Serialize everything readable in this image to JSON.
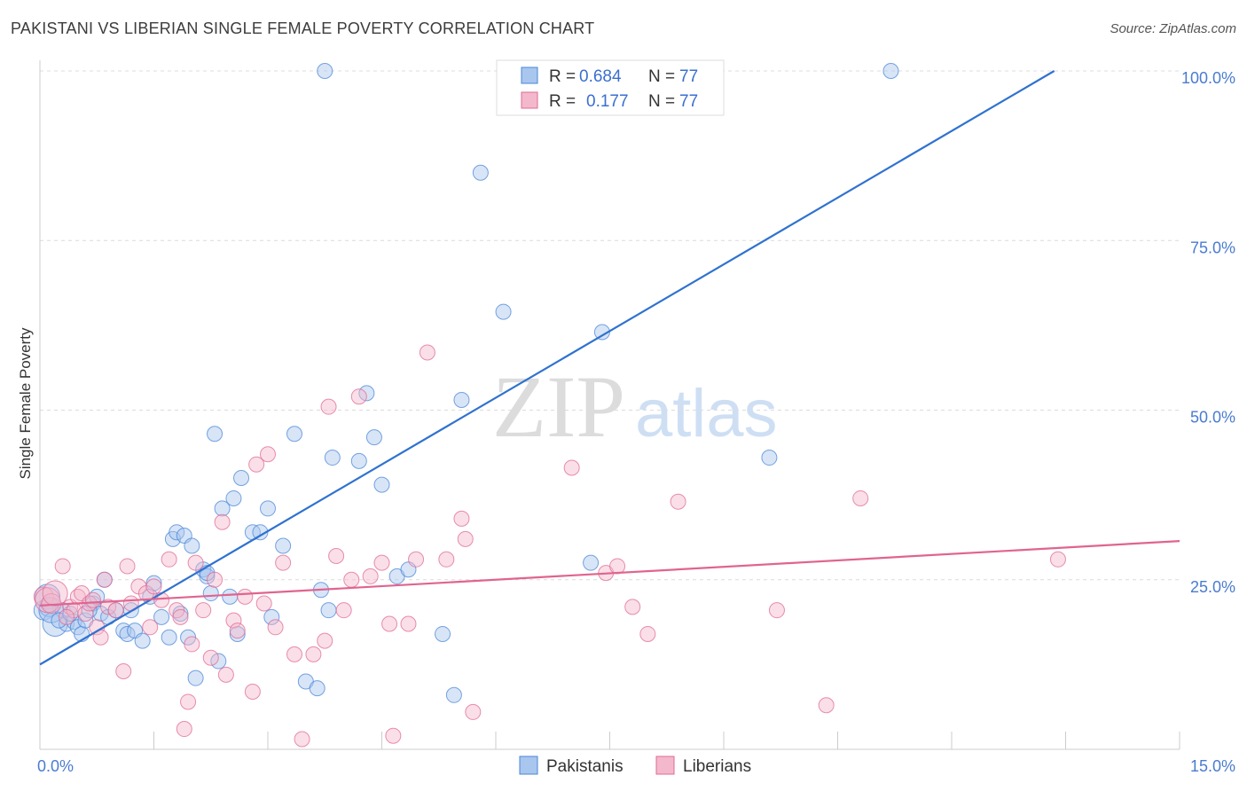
{
  "title": "PAKISTANI VS LIBERIAN SINGLE FEMALE POVERTY CORRELATION CHART",
  "source": "Source: ZipAtlas.com",
  "watermark": {
    "zip": "ZIP",
    "atlas": "atlas"
  },
  "chart_data": {
    "type": "scatter",
    "xlabel": "",
    "ylabel": "Single Female Poverty",
    "xlim": [
      0,
      15
    ],
    "ylim": [
      0,
      100
    ],
    "x_tick_labels": [
      {
        "value": 0,
        "label": "0.0%"
      },
      {
        "value": 15,
        "label": "15.0%"
      }
    ],
    "y_tick_labels": [
      {
        "value": 25,
        "label": "25.0%"
      },
      {
        "value": 50,
        "label": "50.0%"
      },
      {
        "value": 75,
        "label": "75.0%"
      },
      {
        "value": 100,
        "label": "100.0%"
      }
    ],
    "legend": {
      "r_label": "R =",
      "n_label": "N =",
      "entries": [
        {
          "r": "0.684",
          "n": "77"
        },
        {
          "r": "0.177",
          "n": "77"
        }
      ]
    },
    "series": [
      {
        "name": "Pakistanis",
        "color": "#4a86d8",
        "fill": "#a9c6ee",
        "trend": {
          "x": [
            0,
            13.35
          ],
          "y": [
            12.5,
            100
          ]
        },
        "points": [
          [
            0.05,
            20.5
          ],
          [
            0.1,
            22.5
          ],
          [
            0.12,
            21
          ],
          [
            0.2,
            18.5
          ],
          [
            0.3,
            20.5
          ],
          [
            0.35,
            18.5
          ],
          [
            0.45,
            18.8
          ],
          [
            0.5,
            18
          ],
          [
            0.55,
            17
          ],
          [
            0.6,
            19
          ],
          [
            0.7,
            21.5
          ],
          [
            0.75,
            22.5
          ],
          [
            0.8,
            20
          ],
          [
            0.85,
            25
          ],
          [
            0.9,
            19.5
          ],
          [
            1.0,
            20.5
          ],
          [
            1.1,
            17.5
          ],
          [
            1.15,
            17
          ],
          [
            1.25,
            17.5
          ],
          [
            1.35,
            16
          ],
          [
            1.5,
            24.5
          ],
          [
            1.6,
            19.5
          ],
          [
            1.7,
            16.5
          ],
          [
            1.75,
            31
          ],
          [
            1.8,
            32
          ],
          [
            1.85,
            20
          ],
          [
            1.9,
            31.5
          ],
          [
            1.95,
            16.5
          ],
          [
            2.0,
            30
          ],
          [
            2.05,
            10.5
          ],
          [
            2.15,
            26.5
          ],
          [
            2.2,
            25.5
          ],
          [
            2.25,
            23
          ],
          [
            2.3,
            46.5
          ],
          [
            2.35,
            13
          ],
          [
            2.4,
            35.5
          ],
          [
            2.5,
            22.5
          ],
          [
            2.55,
            37
          ],
          [
            2.6,
            17
          ],
          [
            2.65,
            40
          ],
          [
            2.8,
            32
          ],
          [
            2.9,
            32
          ],
          [
            3.0,
            35.5
          ],
          [
            3.05,
            19.5
          ],
          [
            3.2,
            30
          ],
          [
            3.35,
            46.5
          ],
          [
            3.5,
            10
          ],
          [
            3.65,
            9
          ],
          [
            3.7,
            23.5
          ],
          [
            3.8,
            20.5
          ],
          [
            3.85,
            43
          ],
          [
            4.2,
            42.5
          ],
          [
            4.3,
            52.5
          ],
          [
            4.4,
            46
          ],
          [
            4.5,
            39
          ],
          [
            4.7,
            25.5
          ],
          [
            4.85,
            26.5
          ],
          [
            5.3,
            17
          ],
          [
            5.45,
            8
          ],
          [
            5.55,
            51.5
          ],
          [
            5.8,
            85
          ],
          [
            6.1,
            64.5
          ],
          [
            6.25,
            100
          ],
          [
            6.8,
            100
          ],
          [
            7.25,
            27.5
          ],
          [
            7.4,
            61.5
          ],
          [
            8.5,
            100
          ],
          [
            9.6,
            43
          ],
          [
            11.2,
            100
          ],
          [
            0.15,
            20.5
          ],
          [
            0.25,
            19
          ],
          [
            0.4,
            20
          ],
          [
            0.65,
            20.5
          ],
          [
            1.2,
            20.5
          ],
          [
            1.45,
            22.5
          ],
          [
            3.75,
            100
          ],
          [
            2.2,
            26
          ]
        ]
      },
      {
        "name": "Liberians",
        "color": "#e06a94",
        "fill": "#f4b8cc",
        "trend": {
          "x": [
            0,
            15
          ],
          "y": [
            21.2,
            30.7
          ]
        },
        "points": [
          [
            0.05,
            22.5
          ],
          [
            0.1,
            22
          ],
          [
            0.15,
            21.5
          ],
          [
            0.2,
            23
          ],
          [
            0.3,
            27
          ],
          [
            0.4,
            21
          ],
          [
            0.45,
            20.5
          ],
          [
            0.5,
            22.5
          ],
          [
            0.55,
            23
          ],
          [
            0.6,
            20
          ],
          [
            0.65,
            21.5
          ],
          [
            0.7,
            22
          ],
          [
            0.75,
            18
          ],
          [
            0.8,
            16.5
          ],
          [
            0.85,
            25
          ],
          [
            0.9,
            21
          ],
          [
            1.1,
            11.5
          ],
          [
            1.15,
            27
          ],
          [
            1.2,
            21.5
          ],
          [
            1.3,
            24
          ],
          [
            1.4,
            23
          ],
          [
            1.45,
            18
          ],
          [
            1.5,
            24
          ],
          [
            1.6,
            22
          ],
          [
            1.7,
            28
          ],
          [
            1.8,
            20.5
          ],
          [
            1.85,
            19.5
          ],
          [
            1.9,
            3
          ],
          [
            1.95,
            7
          ],
          [
            2.0,
            15.5
          ],
          [
            2.05,
            27.5
          ],
          [
            2.15,
            20.5
          ],
          [
            2.25,
            13.5
          ],
          [
            2.3,
            25
          ],
          [
            2.4,
            33.5
          ],
          [
            2.45,
            11
          ],
          [
            2.55,
            19
          ],
          [
            2.6,
            17.5
          ],
          [
            2.7,
            22.5
          ],
          [
            2.8,
            8.5
          ],
          [
            2.85,
            42
          ],
          [
            2.95,
            21.5
          ],
          [
            3.0,
            43.5
          ],
          [
            3.1,
            18
          ],
          [
            3.2,
            27.5
          ],
          [
            3.35,
            14
          ],
          [
            3.45,
            1.5
          ],
          [
            3.6,
            14
          ],
          [
            3.75,
            16
          ],
          [
            3.8,
            50.5
          ],
          [
            3.9,
            28.5
          ],
          [
            4.0,
            20.5
          ],
          [
            4.1,
            25
          ],
          [
            4.2,
            52
          ],
          [
            4.35,
            25.5
          ],
          [
            4.5,
            27.5
          ],
          [
            4.6,
            18.5
          ],
          [
            4.65,
            2
          ],
          [
            4.85,
            18.5
          ],
          [
            4.95,
            28
          ],
          [
            5.1,
            58.5
          ],
          [
            5.35,
            28
          ],
          [
            5.55,
            34
          ],
          [
            5.6,
            31
          ],
          [
            5.7,
            5.5
          ],
          [
            7.0,
            41.5
          ],
          [
            7.45,
            26
          ],
          [
            7.6,
            27
          ],
          [
            7.8,
            21
          ],
          [
            8.0,
            17
          ],
          [
            8.4,
            36.5
          ],
          [
            9.7,
            20.5
          ],
          [
            10.35,
            6.5
          ],
          [
            10.8,
            37
          ],
          [
            13.4,
            28
          ],
          [
            0.35,
            19.5
          ],
          [
            1.0,
            20.5
          ]
        ]
      }
    ]
  }
}
